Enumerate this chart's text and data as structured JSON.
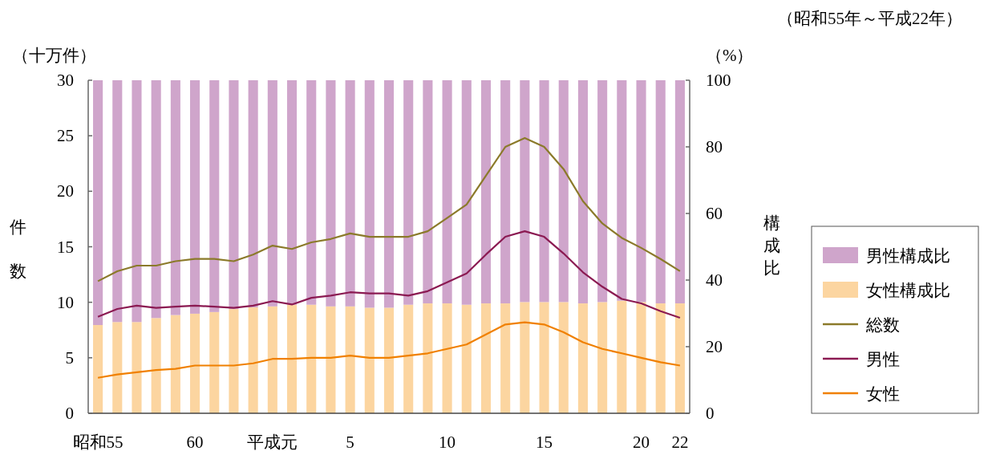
{
  "chart_data": {
    "type": "bar",
    "stacked": true,
    "subtitle": "（昭和55年～平成22年）",
    "ylabel": "件数",
    "y2label": "構成比",
    "annotations": [
      "（十万件）",
      "（%）"
    ],
    "categories": [
      "昭和55",
      null,
      null,
      null,
      null,
      "60",
      null,
      null,
      null,
      "平成元",
      null,
      null,
      null,
      "5",
      null,
      null,
      null,
      null,
      "10",
      null,
      null,
      null,
      null,
      "15",
      null,
      null,
      null,
      null,
      "20",
      null,
      "22"
    ],
    "ylim": [
      0,
      30
    ],
    "yticks": [
      0,
      5,
      10,
      15,
      20,
      25,
      30
    ],
    "y2lim": [
      0,
      100
    ],
    "y2ticks": [
      0,
      20,
      40,
      60,
      80,
      100
    ],
    "legend": "right",
    "marker": "none",
    "line_style": "solid",
    "series": [
      {
        "name": "女性構成比",
        "axis": "y2",
        "color": "#fcd5a0",
        "values": [
          26.5,
          27.4,
          27.4,
          28.6,
          29.5,
          29.9,
          30.4,
          31.3,
          31.8,
          32.1,
          32.6,
          32.6,
          32.1,
          32.1,
          31.7,
          31.7,
          32.6,
          33.0,
          33.0,
          32.6,
          33.0,
          33.0,
          33.4,
          33.4,
          33.4,
          33.0,
          33.4,
          33.8,
          33.4,
          33.0,
          33.0
        ]
      },
      {
        "name": "男性構成比",
        "axis": "y2",
        "color": "#cfa5cb",
        "values": [
          73.5,
          72.6,
          72.6,
          71.4,
          70.5,
          70.1,
          69.6,
          68.7,
          68.2,
          67.9,
          67.4,
          67.4,
          67.9,
          67.9,
          68.3,
          68.3,
          67.4,
          67.0,
          67.0,
          67.4,
          67.0,
          67.0,
          66.6,
          66.6,
          66.6,
          67.0,
          66.6,
          66.2,
          66.6,
          67.0,
          67.0
        ]
      },
      {
        "name": "総数",
        "type": "line",
        "color": "#8b7a2a",
        "values": [
          11.9,
          12.8,
          13.3,
          13.3,
          13.7,
          13.9,
          13.9,
          13.7,
          14.3,
          15.1,
          14.8,
          15.4,
          15.7,
          16.2,
          15.9,
          15.9,
          15.9,
          16.4,
          17.6,
          18.8,
          21.4,
          24.0,
          24.8,
          24.0,
          22.0,
          19.1,
          17.1,
          15.8,
          14.9,
          13.9,
          12.8
        ]
      },
      {
        "name": "男性",
        "type": "line",
        "color": "#8b1a52",
        "values": [
          8.7,
          9.4,
          9.7,
          9.5,
          9.6,
          9.7,
          9.6,
          9.5,
          9.7,
          10.1,
          9.8,
          10.4,
          10.6,
          10.9,
          10.8,
          10.8,
          10.6,
          11.0,
          11.8,
          12.6,
          14.3,
          15.9,
          16.4,
          15.9,
          14.4,
          12.7,
          11.4,
          10.3,
          9.9,
          9.2,
          8.6
        ]
      },
      {
        "name": "女性",
        "type": "line",
        "color": "#f08000",
        "values": [
          3.2,
          3.5,
          3.7,
          3.9,
          4.0,
          4.3,
          4.3,
          4.3,
          4.5,
          4.9,
          4.9,
          5.0,
          5.0,
          5.2,
          5.0,
          5.0,
          5.2,
          5.4,
          5.8,
          6.2,
          7.1,
          8.0,
          8.2,
          8.0,
          7.3,
          6.4,
          5.8,
          5.4,
          5.0,
          4.6,
          4.3
        ]
      }
    ]
  }
}
